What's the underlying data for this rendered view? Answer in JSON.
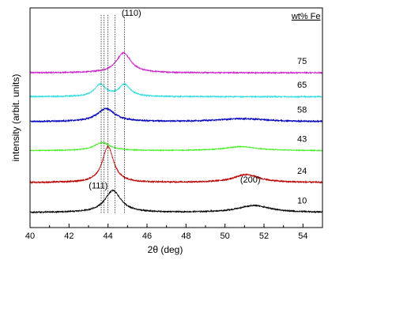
{
  "chart_data": {
    "type": "line",
    "xlabel": "2θ (deg)",
    "ylabel": "intensity (arbit. units)",
    "xlim": [
      40,
      55
    ],
    "x_ticks": [
      40,
      42,
      44,
      46,
      48,
      50,
      52,
      54
    ],
    "y_ticks_shown": false,
    "grid": false,
    "legend_title": "wt% Fe",
    "series": [
      {
        "name": "75",
        "color": "#cc22cc",
        "offset": 6.55,
        "peaks": [
          {
            "center": 44.8,
            "height": 1.0,
            "width": 0.45
          }
        ],
        "noise": 0.03
      },
      {
        "name": "65",
        "color": "#33dddd",
        "offset": 5.35,
        "peaks": [
          {
            "center": 43.6,
            "height": 0.6,
            "width": 0.35
          },
          {
            "center": 44.85,
            "height": 0.6,
            "width": 0.35
          }
        ],
        "noise": 0.03
      },
      {
        "name": "58",
        "color": "#0000bb",
        "offset": 4.1,
        "peaks": [
          {
            "center": 43.9,
            "height": 0.65,
            "width": 0.55
          },
          {
            "center": 50.9,
            "height": 0.15,
            "width": 1.5
          }
        ],
        "noise": 0.035
      },
      {
        "name": "43",
        "color": "#44ee22",
        "offset": 2.65,
        "peaks": [
          {
            "center": 43.7,
            "height": 0.4,
            "width": 0.5
          },
          {
            "center": 50.8,
            "height": 0.2,
            "width": 1.0
          }
        ],
        "noise": 0.02
      },
      {
        "name": "24",
        "color": "#bb0000",
        "offset": 1.05,
        "peaks": [
          {
            "center": 44.0,
            "height": 1.8,
            "width": 0.35
          },
          {
            "center": 51.1,
            "height": 0.4,
            "width": 0.8
          }
        ],
        "noise": 0.035
      },
      {
        "name": "10",
        "color": "#000000",
        "offset": -0.45,
        "peaks": [
          {
            "center": 44.25,
            "height": 1.1,
            "width": 0.5
          },
          {
            "center": 51.5,
            "height": 0.35,
            "width": 1.0
          }
        ],
        "noise": 0.03
      }
    ],
    "reference_lines": [
      43.65,
      43.8,
      44.0,
      44.35,
      44.85
    ],
    "annotations": [
      {
        "text": "(110)",
        "x": 45.2,
        "y": 9.4
      },
      {
        "text": "(111)",
        "x": 43.5,
        "y": 0.75
      },
      {
        "text": "(200)",
        "x": 51.3,
        "y": 1.05
      }
    ],
    "ylim": [
      -1.2,
      9.8
    ]
  }
}
